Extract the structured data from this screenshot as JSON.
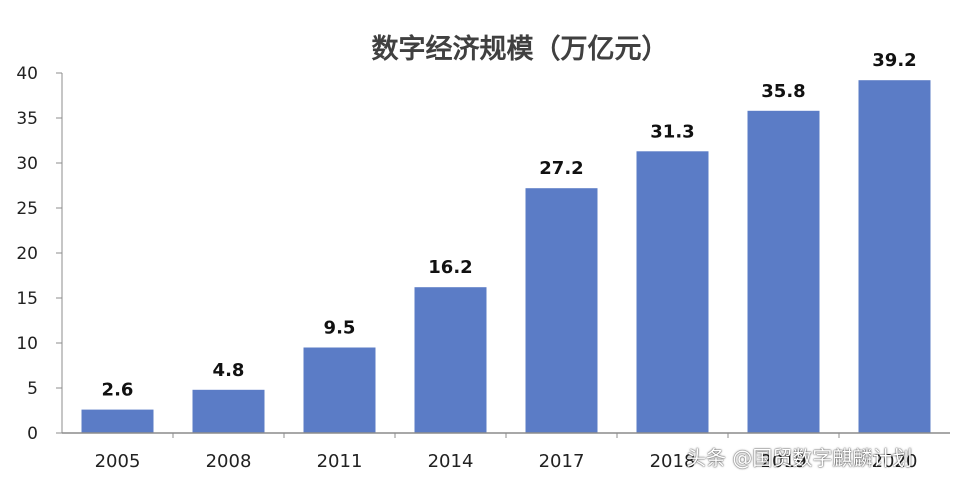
{
  "chart_data": {
    "type": "bar",
    "title": "数字经济规模（万亿元）",
    "categories": [
      "2005",
      "2008",
      "2011",
      "2014",
      "2017",
      "2018",
      "2019",
      "2020"
    ],
    "values": [
      2.6,
      4.8,
      9.5,
      16.2,
      27.2,
      31.3,
      35.8,
      39.2
    ],
    "data_labels": [
      "2.6",
      "4.8",
      "9.5",
      "16.2",
      "27.2",
      "31.3",
      "35.8",
      "39.2"
    ],
    "ylim": [
      0,
      40
    ],
    "yticks": [
      "0",
      "5",
      "10",
      "15",
      "20",
      "25",
      "30",
      "35",
      "40"
    ],
    "xlabel": "",
    "ylabel": "",
    "grid": false,
    "bar_color": "#5b7cc6"
  },
  "watermark": {
    "text": "头条 @国贸数字麒麟计划"
  }
}
